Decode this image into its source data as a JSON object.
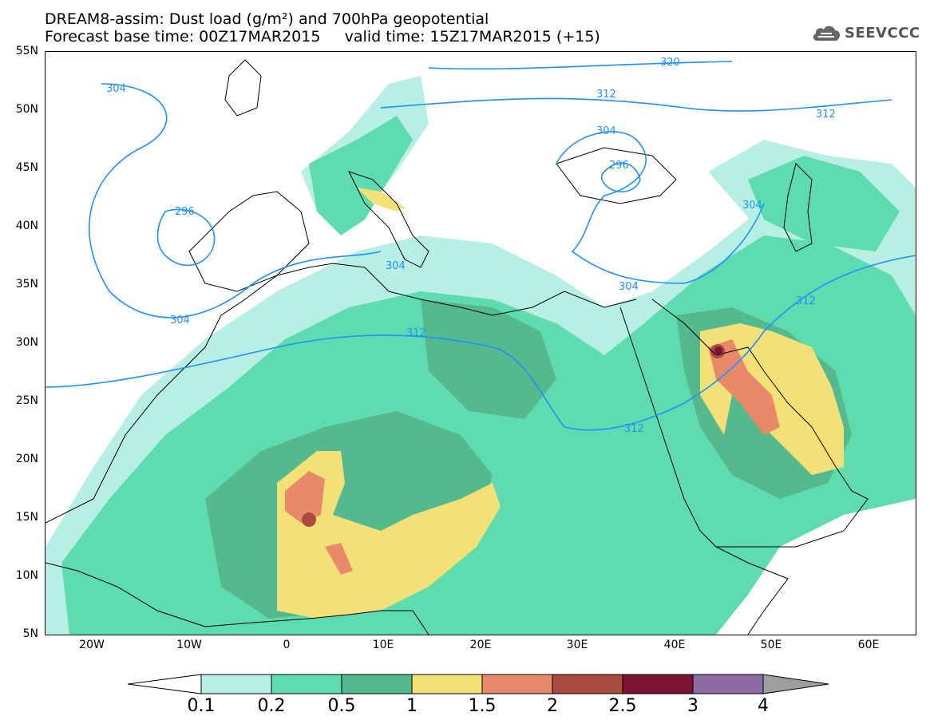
{
  "title": {
    "line1": "DREAM8-assim: Dust load (g/m²) and 700hPa geopotential",
    "line2": "Forecast base time: 00Z17MAR2015     valid time: 15Z17MAR2015 (+15)"
  },
  "logo": {
    "text": "SEEVCCC",
    "icon": "cloud-icon"
  },
  "axes": {
    "lat_labels": [
      "55N",
      "50N",
      "45N",
      "40N",
      "35N",
      "30N",
      "25N",
      "20N",
      "15N",
      "10N",
      "5N"
    ],
    "lon_labels": [
      "20W",
      "10W",
      "0",
      "10E",
      "20E",
      "30E",
      "40E",
      "50E",
      "60E"
    ],
    "lat_range": [
      5,
      55
    ],
    "lon_range": [
      -25,
      65
    ]
  },
  "contours": {
    "color": "#1e90ff",
    "labels": [
      "320",
      "312",
      "312",
      "304",
      "296",
      "304",
      "296",
      "304",
      "304",
      "304",
      "312",
      "312",
      "312",
      "304"
    ]
  },
  "colorbar": {
    "labels": [
      "0.1",
      "0.2",
      "0.5",
      "1",
      "1.5",
      "2",
      "2.5",
      "3",
      "4"
    ],
    "colors": [
      "#b7efe4",
      "#5edcaf",
      "#55b98e",
      "#f3e178",
      "#e9896a",
      "#a84c3f",
      "#7b1332",
      "#8c6ba5"
    ],
    "under_color": "#ffffff",
    "over_color": "#9e9e9e"
  }
}
